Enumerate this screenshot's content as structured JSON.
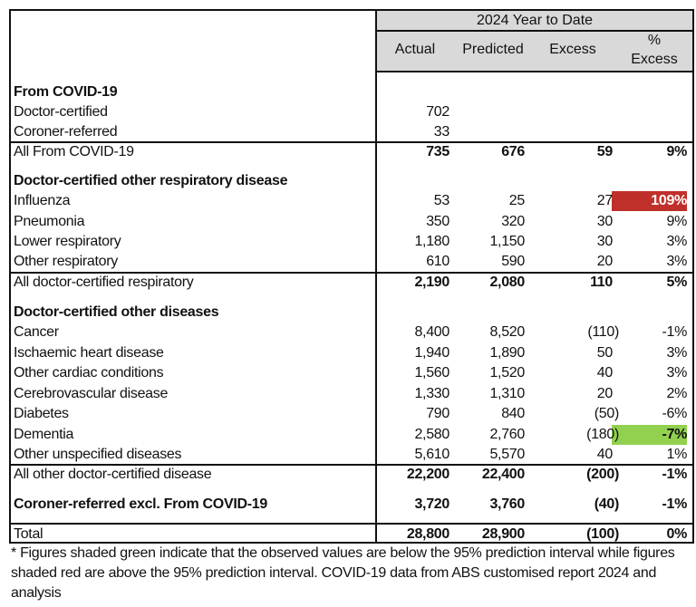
{
  "header": {
    "period": "2024 Year to Date",
    "columns": [
      "Actual",
      "Predicted",
      "Excess",
      "%",
      "Excess"
    ]
  },
  "colors": {
    "header_bg": "#d9d9d9",
    "above_interval": "#c0302b",
    "below_interval": "#92d050"
  },
  "rows": [
    {
      "label": "From COVID-19",
      "type": "section"
    },
    {
      "label": "Doctor-certified",
      "actual": "702"
    },
    {
      "label": "Coroner-referred",
      "actual": "33"
    },
    {
      "label": "All From COVID-19",
      "type": "total",
      "actual": "735",
      "predicted": "676",
      "excess": "59",
      "pct": "9%"
    },
    {
      "label": "Doctor-certified other respiratory disease",
      "type": "section"
    },
    {
      "label": "Influenza",
      "actual": "53",
      "predicted": "25",
      "excess": "27",
      "pct": "109%",
      "shade": "red"
    },
    {
      "label": "Pneumonia",
      "actual": "350",
      "predicted": "320",
      "excess": "30",
      "pct": "9%"
    },
    {
      "label": "Lower respiratory",
      "actual": "1,180",
      "predicted": "1,150",
      "excess": "30",
      "pct": "3%"
    },
    {
      "label": "Other respiratory",
      "actual": "610",
      "predicted": "590",
      "excess": "20",
      "pct": "3%"
    },
    {
      "label": "All doctor-certified respiratory",
      "type": "total",
      "actual": "2,190",
      "predicted": "2,080",
      "excess": "110",
      "pct": "5%"
    },
    {
      "label": "Doctor-certified other diseases",
      "type": "section"
    },
    {
      "label": "Cancer",
      "actual": "8,400",
      "predicted": "8,520",
      "excess": "(110)",
      "pct": "-1%"
    },
    {
      "label": "Ischaemic heart disease",
      "actual": "1,940",
      "predicted": "1,890",
      "excess": "50",
      "pct": "3%"
    },
    {
      "label": "Other cardiac conditions",
      "actual": "1,560",
      "predicted": "1,520",
      "excess": "40",
      "pct": "3%"
    },
    {
      "label": "Cerebrovascular disease",
      "actual": "1,330",
      "predicted": "1,310",
      "excess": "20",
      "pct": "2%"
    },
    {
      "label": "Diabetes",
      "actual": "790",
      "predicted": "840",
      "excess": "(50)",
      "pct": "-6%"
    },
    {
      "label": "Dementia",
      "actual": "2,580",
      "predicted": "2,760",
      "excess": "(180)",
      "pct": "-7%",
      "shade": "green"
    },
    {
      "label": "Other unspecified diseases",
      "actual": "5,610",
      "predicted": "5,570",
      "excess": "40",
      "pct": "1%"
    },
    {
      "label": "All other doctor-certified disease",
      "type": "total",
      "actual": "22,200",
      "predicted": "22,400",
      "excess": "(200)",
      "pct": "-1%"
    },
    {
      "label": "Coroner-referred excl. From COVID-19",
      "type": "section",
      "actual": "3,720",
      "predicted": "3,760",
      "excess": "(40)",
      "pct": "-1%"
    },
    {
      "label": "Total",
      "type": "grand",
      "actual": "28,800",
      "predicted": "28,900",
      "excess": "(100)",
      "pct": "0%"
    }
  ],
  "footnote": "* Figures shaded green indicate that the observed values are below the 95% prediction interval while figures shaded red are above the 95% prediction interval.  COVID-19 data from ABS customised report 2024 and analysis"
}
